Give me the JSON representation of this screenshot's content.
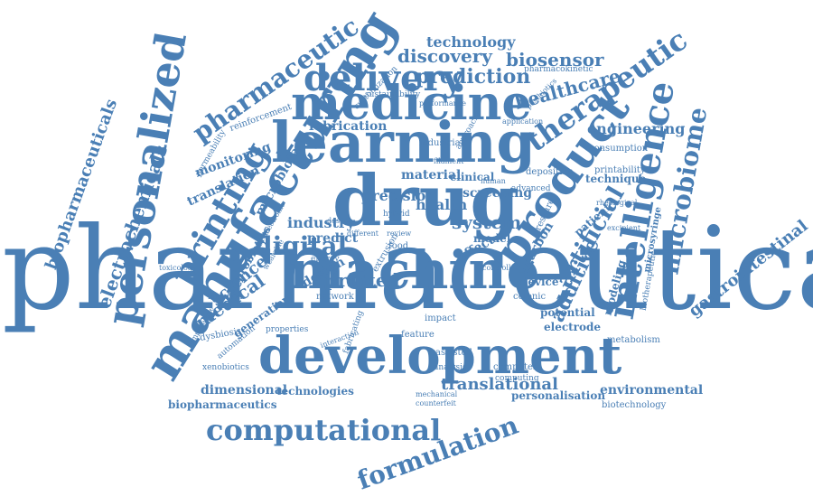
{
  "colors": {
    "word": "#4a7fb5",
    "background": "#ffffff"
  },
  "words": [
    "pharmaceutical",
    "drug",
    "machine",
    "learning",
    "medicine",
    "development",
    "product",
    "manufacturing",
    "personalized",
    "delivery",
    "intelligence",
    "therapeutic",
    "printing",
    "computational",
    "pharmaceutic",
    "microbiome",
    "formulation",
    "digital",
    "biopharmaceuticals",
    "electrochemicals",
    "gastrointestinal",
    "artificial",
    "additive",
    "healthcare",
    "prediction",
    "discovery",
    "biosensor",
    "technology",
    "system",
    "printed",
    "industry",
    "medical",
    "science",
    "precision",
    "engineering",
    "fabrication",
    "monitoring",
    "translational",
    "environmental",
    "dimensional",
    "technologies",
    "biopharmaceutics",
    "biotechnology",
    "personalisation",
    "material",
    "screening",
    "clinical",
    "health",
    "predict",
    "design",
    "device",
    "model",
    "effect",
    "potential",
    "electrode",
    "microsyringe",
    "technique",
    "modeling",
    "metabolism",
    "consumption",
    "printability",
    "microbiota",
    "translation",
    "probiotics",
    "generation",
    "pharmacokinetic",
    "sustainability",
    "customization",
    "reinforcement",
    "permeability",
    "microbial",
    "toxicology",
    "dysbiosis",
    "xenobiotics",
    "automation",
    "feature",
    "assisted",
    "analysis",
    "computer",
    "computing",
    "industrial",
    "carbon",
    "deposition",
    "biotherapeutic",
    "colonic",
    "impact",
    "food",
    "network",
    "energy",
    "hybrid",
    "human",
    "filament",
    "performance",
    "application",
    "approach",
    "posthiotics",
    "rheological",
    "excipient",
    "patient",
    "advanced",
    "pressure",
    "extrusion",
    "review",
    "different",
    "dosage",
    "properties",
    "temperature",
    "interaction",
    "mechanical",
    "counterfeit",
    "fabricating",
    "controlled",
    "electronic",
    "wearable"
  ]
}
